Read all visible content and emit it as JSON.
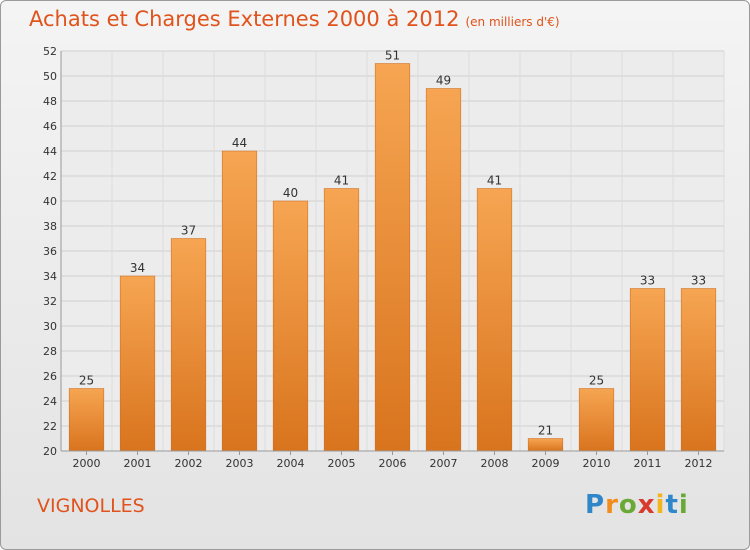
{
  "header": {
    "title": "Achats et Charges Externes 2000 à 2012",
    "subtitle": "(en milliers d'€)"
  },
  "footer": {
    "place": "VIGNOLLES",
    "logo_letters": [
      "P",
      "r",
      "o",
      "x",
      "i",
      "t",
      "i"
    ],
    "logo_colors": [
      "#2f86c9",
      "#f28c1c",
      "#6aa936",
      "#d83a2e",
      "#f2b51c",
      "#2f86c9",
      "#6aa936"
    ]
  },
  "chart_data": {
    "type": "bar",
    "title": "Achats et Charges Externes 2000 à 2012",
    "subtitle": "(en milliers d'€)",
    "categories": [
      "2000",
      "2001",
      "2002",
      "2003",
      "2004",
      "2005",
      "2006",
      "2007",
      "2008",
      "2009",
      "2010",
      "2011",
      "2012"
    ],
    "values": [
      25,
      34,
      37,
      44,
      40,
      41,
      51,
      49,
      41,
      21,
      25,
      33,
      33
    ],
    "ylim": [
      20,
      52
    ],
    "yticks": [
      20,
      22,
      24,
      26,
      28,
      30,
      32,
      34,
      36,
      38,
      40,
      42,
      44,
      46,
      48,
      50,
      52
    ],
    "grid": true,
    "bar_color_top": "#f6a552",
    "bar_color_bottom": "#d9741e",
    "xlabel": "",
    "ylabel": ""
  }
}
